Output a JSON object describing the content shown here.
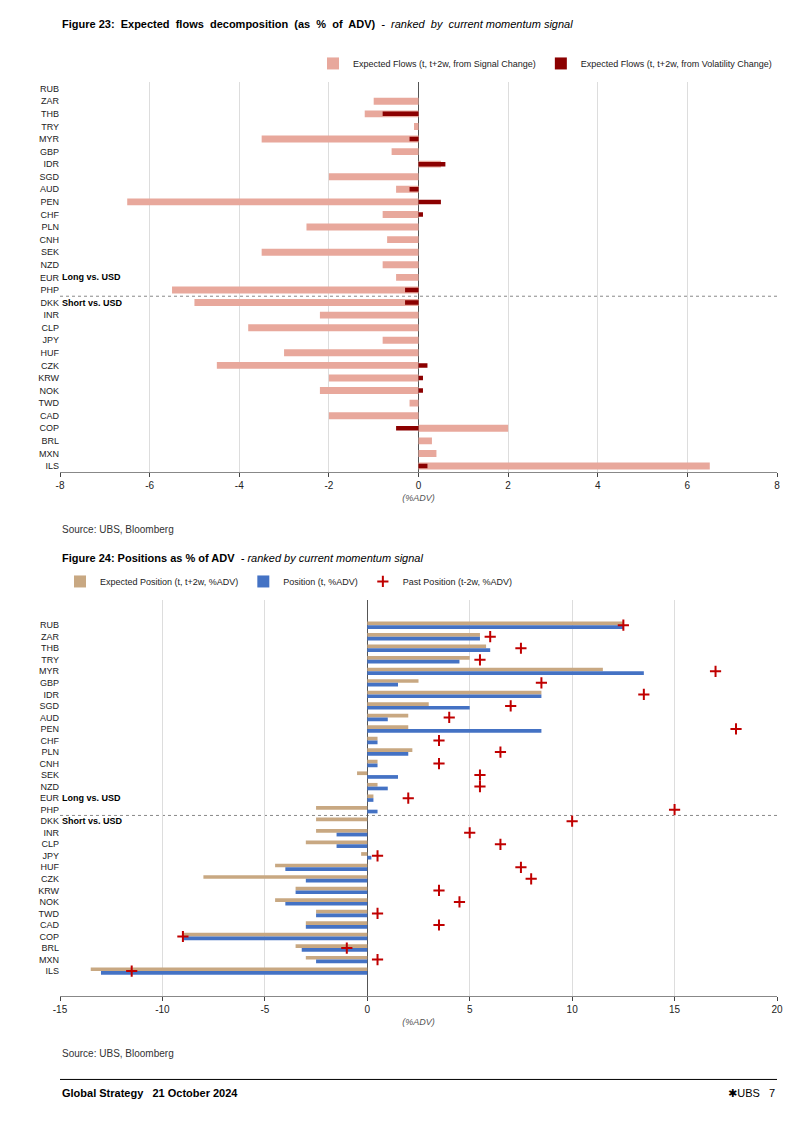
{
  "chart_data": [
    {
      "type": "bar",
      "orientation": "horizontal",
      "title": "Figure 23:  Expected  flows  decomposition  (as  %  of  ADV)",
      "subtitle": "-  ranked  by  current momentum signal",
      "categories": [
        "RUB",
        "ZAR",
        "THB",
        "TRY",
        "MYR",
        "GBP",
        "IDR",
        "SGD",
        "AUD",
        "PEN",
        "CHF",
        "PLN",
        "CNH",
        "SEK",
        "NZD",
        "EUR",
        "PHP",
        "DKK",
        "INR",
        "CLP",
        "JPY",
        "HUF",
        "CZK",
        "KRW",
        "NOK",
        "TWD",
        "CAD",
        "COP",
        "BRL",
        "MXN",
        "ILS"
      ],
      "series": [
        {
          "name": "Expected Flows (t, t+2w, from Signal Change)",
          "color": "#e8a89c",
          "type": "bar",
          "values": [
            0.0,
            -1.0,
            -1.2,
            -0.1,
            -3.5,
            -0.6,
            0.5,
            -2.0,
            -0.5,
            -6.5,
            -0.8,
            -2.5,
            -0.7,
            -3.5,
            -0.8,
            -0.5,
            -5.5,
            -5.0,
            -2.2,
            -3.8,
            -0.8,
            -3.0,
            -4.5,
            -2.0,
            -2.2,
            -0.2,
            -2.0,
            2.0,
            0.3,
            0.4,
            6.5
          ]
        },
        {
          "name": "Expected Flows (t, t+2w, from Volatility Change)",
          "color": "#8b0000",
          "type": "bar",
          "values": [
            0.0,
            0.0,
            -0.8,
            0.0,
            -0.2,
            0.0,
            0.6,
            0.0,
            -0.2,
            0.5,
            0.1,
            0.0,
            0.0,
            0.0,
            0.0,
            0.0,
            -0.3,
            -0.3,
            0.0,
            0.0,
            0.0,
            0.0,
            0.2,
            0.1,
            0.1,
            0.0,
            0.0,
            -0.5,
            0.0,
            0.0,
            0.2
          ]
        }
      ],
      "xlim": [
        -8,
        8
      ],
      "xticks": [
        -8,
        -6,
        -4,
        -2,
        0,
        2,
        4,
        6,
        8
      ],
      "xlabel": "(%ADV)",
      "grid": true,
      "legend": "upper right",
      "annotations": [
        {
          "text": "Long vs. USD",
          "category": "EUR"
        },
        {
          "text": "Short vs. USD",
          "category": "DKK"
        },
        {
          "text": "Source: UBS, Bloomberg"
        }
      ]
    },
    {
      "type": "bar",
      "orientation": "horizontal",
      "title": "Figure 24: Positions as % of ADV",
      "subtitle": "- ranked by current momentum signal",
      "categories": [
        "RUB",
        "ZAR",
        "THB",
        "TRY",
        "MYR",
        "GBP",
        "IDR",
        "SGD",
        "AUD",
        "PEN",
        "CHF",
        "PLN",
        "CNH",
        "SEK",
        "NZD",
        "EUR",
        "PHP",
        "DKK",
        "INR",
        "CLP",
        "JPY",
        "HUF",
        "CZK",
        "KRW",
        "NOK",
        "TWD",
        "CAD",
        "COP",
        "BRL",
        "MXN",
        "ILS"
      ],
      "series": [
        {
          "name": "Expected Position (t, t+2w, %ADV)",
          "color": "#c8a882",
          "type": "bar",
          "values": [
            12.5,
            5.5,
            5.8,
            5.0,
            11.5,
            2.5,
            8.5,
            3.0,
            2.0,
            2.0,
            0.5,
            2.2,
            0.5,
            -0.5,
            0.5,
            0.3,
            -2.5,
            -2.5,
            -2.5,
            -3.0,
            -0.3,
            -4.5,
            -8.0,
            -3.5,
            -4.5,
            -2.5,
            -3.0,
            -9.0,
            -3.5,
            -3.0,
            -13.5
          ]
        },
        {
          "name": "Position (t, %ADV)",
          "color": "#4472c4",
          "type": "bar",
          "values": [
            12.5,
            5.5,
            6.0,
            4.5,
            13.5,
            1.5,
            8.5,
            5.0,
            1.0,
            8.5,
            0.5,
            2.0,
            0.5,
            1.5,
            1.0,
            0.3,
            0.5,
            0.0,
            -1.5,
            -1.5,
            0.2,
            -4.0,
            -3.0,
            -3.5,
            -4.0,
            -2.5,
            -3.0,
            -9.0,
            -3.2,
            -2.5,
            -13.0
          ]
        },
        {
          "name": "Past Position (t-2w, %ADV)",
          "color": "#c00000",
          "type": "scatter",
          "marker": "+",
          "values": [
            12.5,
            6.0,
            7.5,
            5.5,
            17.0,
            8.5,
            13.5,
            7.0,
            4.0,
            18.0,
            3.5,
            6.5,
            3.5,
            5.5,
            5.5,
            2.0,
            15.0,
            10.0,
            5.0,
            6.5,
            0.5,
            7.5,
            8.0,
            3.5,
            4.5,
            0.5,
            3.5,
            -9.0,
            -1.0,
            0.5,
            -11.5
          ]
        }
      ],
      "xlim": [
        -15,
        20
      ],
      "xticks": [
        -15,
        -10,
        -5,
        0,
        5,
        10,
        15,
        20
      ],
      "xlabel": "(%ADV)",
      "grid": true,
      "legend": "upper left",
      "annotations": [
        {
          "text": "Long vs. USD",
          "category": "EUR"
        },
        {
          "text": "Short vs. USD",
          "category": "DKK"
        },
        {
          "text": "Source: UBS, Bloomberg"
        },
        {
          "text": "Global Strategy   21 October 2024"
        },
        {
          "text": "✱UBS   7"
        }
      ]
    }
  ]
}
